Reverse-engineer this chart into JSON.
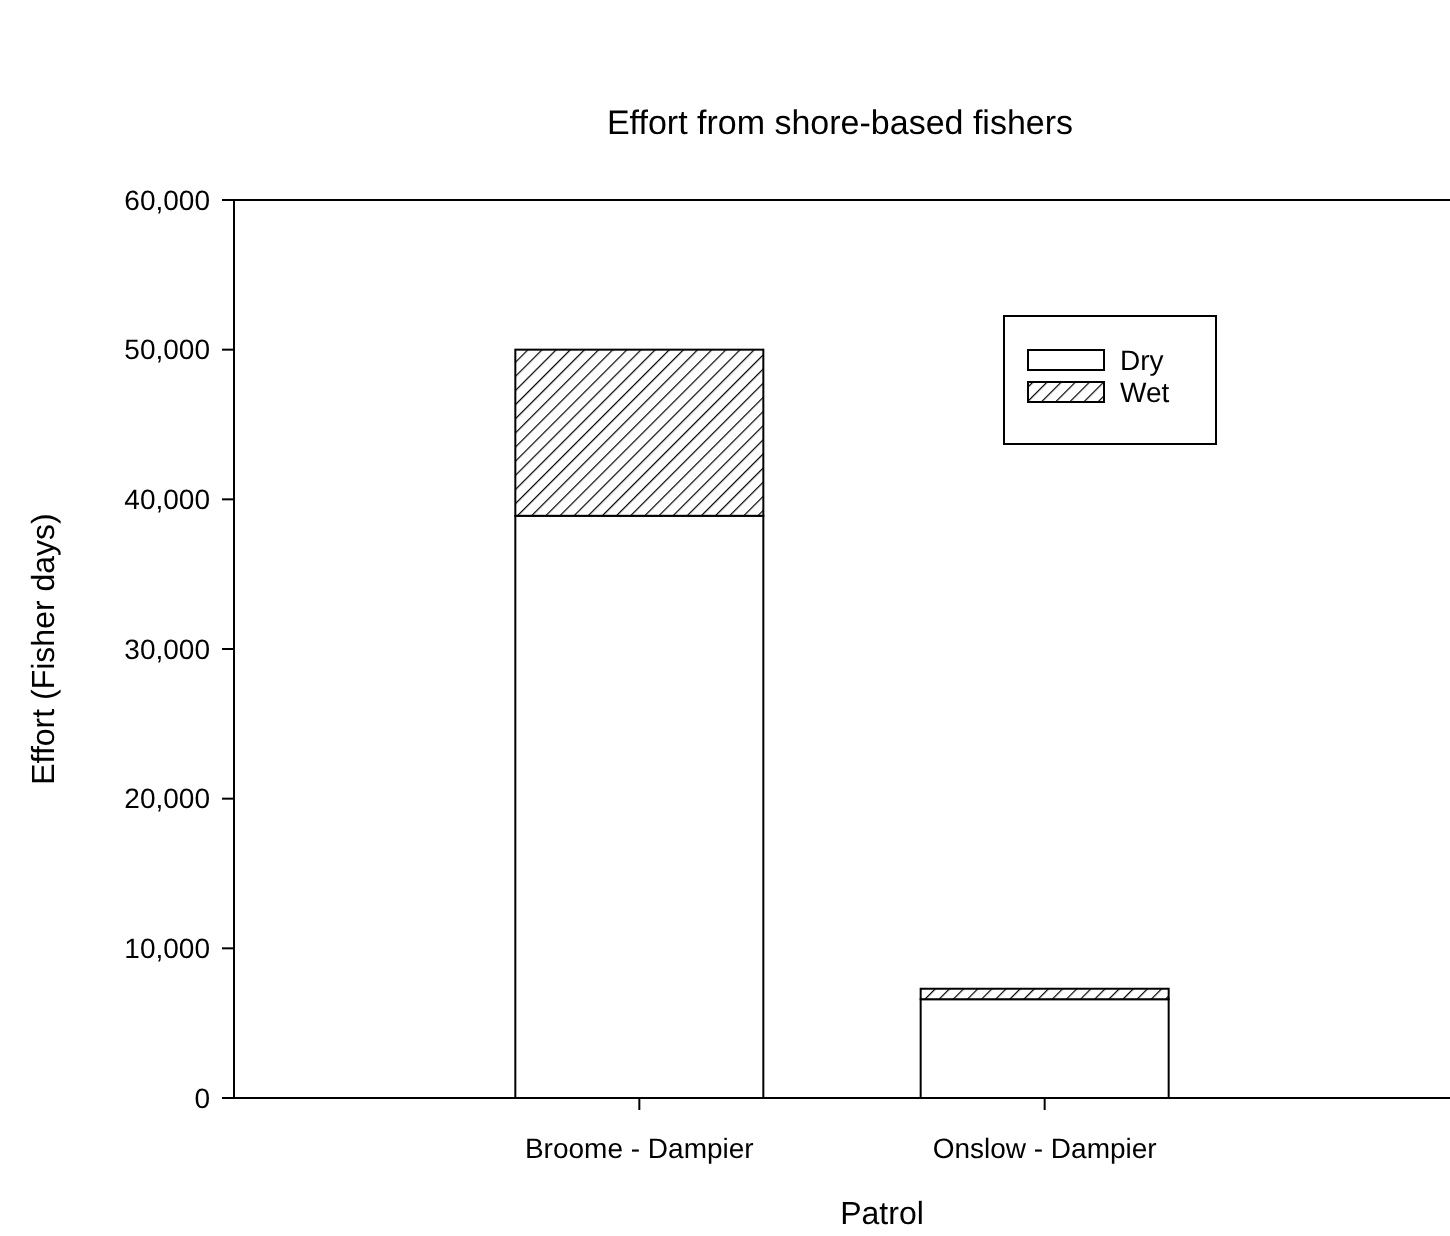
{
  "chart_data": {
    "type": "bar",
    "title": "Effort from shore-based fishers",
    "xlabel": "Patrol",
    "ylabel": "Effort (Fisher days)",
    "categories": [
      "Broome - Dampier",
      "Onslow - Dampier"
    ],
    "stacked": true,
    "series": [
      {
        "name": "Dry",
        "color": "#ffffff",
        "values": [
          38900,
          6600
        ]
      },
      {
        "name": "Wet",
        "color": "#000000",
        "values": [
          11100,
          700
        ]
      }
    ],
    "ylim": [
      0,
      60000
    ],
    "yticks": [
      {
        "value": 0,
        "label": "0"
      },
      {
        "value": 10000,
        "label": "10,000"
      },
      {
        "value": 20000,
        "label": "20,000"
      },
      {
        "value": 30000,
        "label": "30,000"
      },
      {
        "value": 40000,
        "label": "40,000"
      },
      {
        "value": 50000,
        "label": "50,000"
      },
      {
        "value": 60000,
        "label": "60,000"
      }
    ],
    "legend": "top right",
    "grid": false
  }
}
